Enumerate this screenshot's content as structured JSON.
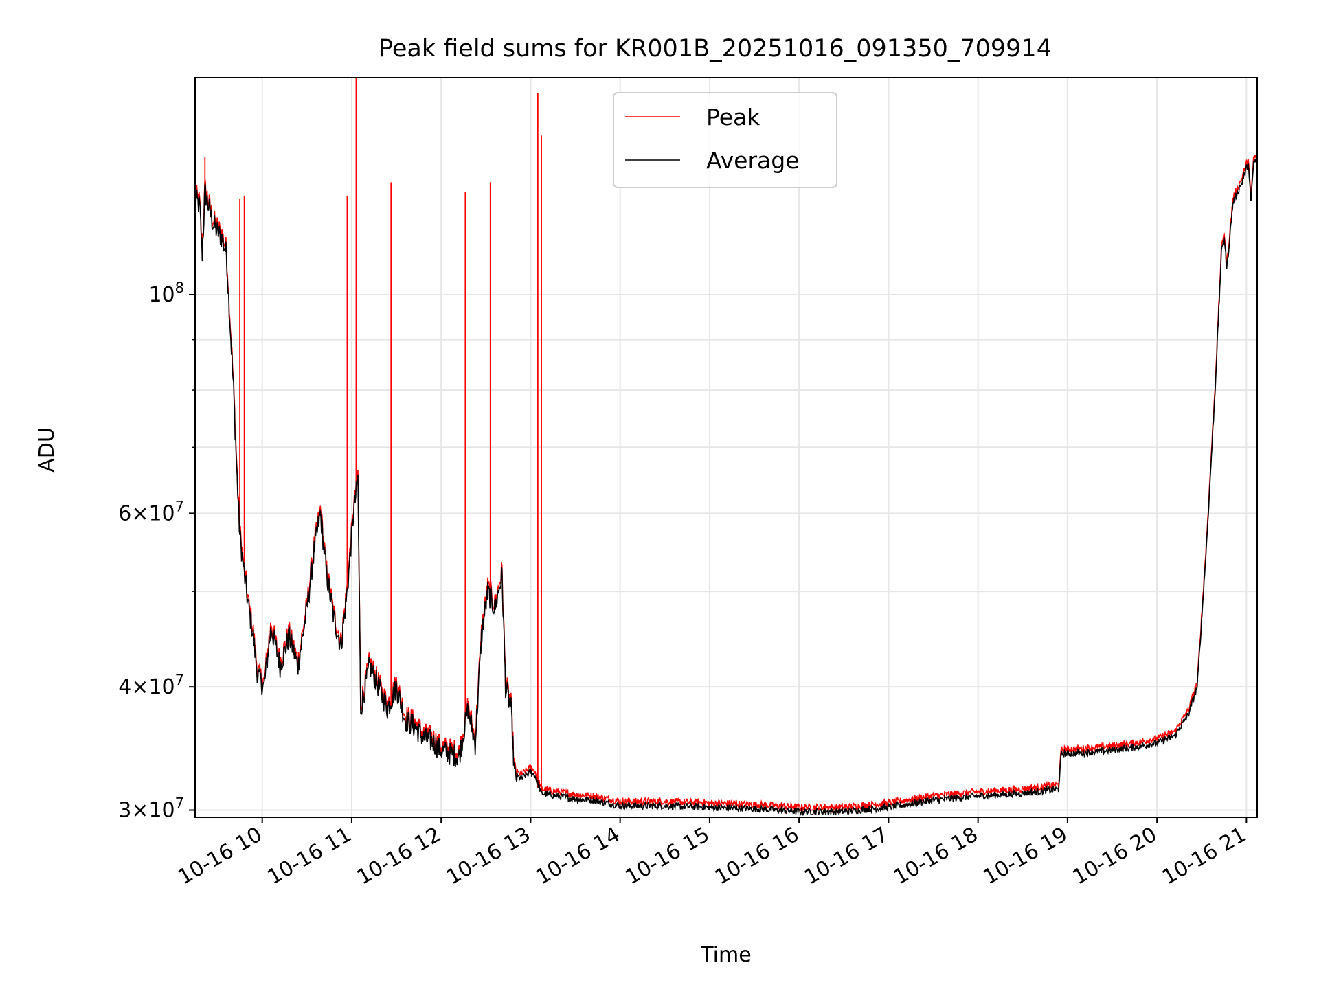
{
  "chart_data": {
    "type": "line",
    "title": "Peak field sums for KR001B_20251016_091350_709914",
    "xlabel": "Time",
    "ylabel": "ADU",
    "yscale": "log",
    "ylim": [
      29500000,
      166000000
    ],
    "xlim_hours": [
      9.25,
      21.12
    ],
    "grid": true,
    "legend_position": "upper-center",
    "x_ticks": [
      {
        "hour": 10,
        "label": "10-16 10"
      },
      {
        "hour": 11,
        "label": "10-16 11"
      },
      {
        "hour": 12,
        "label": "10-16 12"
      },
      {
        "hour": 13,
        "label": "10-16 13"
      },
      {
        "hour": 14,
        "label": "10-16 14"
      },
      {
        "hour": 15,
        "label": "10-16 15"
      },
      {
        "hour": 16,
        "label": "10-16 16"
      },
      {
        "hour": 17,
        "label": "10-16 17"
      },
      {
        "hour": 18,
        "label": "10-16 18"
      },
      {
        "hour": 19,
        "label": "10-16 19"
      },
      {
        "hour": 20,
        "label": "10-16 20"
      },
      {
        "hour": 21,
        "label": "10-16 21"
      }
    ],
    "y_ticks": [
      {
        "value": 30000000,
        "mantissa": "3",
        "exp": "7"
      },
      {
        "value": 40000000,
        "mantissa": "4",
        "exp": "7"
      },
      {
        "value": 60000000,
        "mantissa": "6",
        "exp": "7"
      },
      {
        "value": 100000000,
        "mantissa": "",
        "exp": "8"
      }
    ],
    "y_minor_ticks": [
      50000000,
      70000000,
      80000000,
      90000000
    ],
    "series": [
      {
        "name": "Average",
        "color": "#000000",
        "points": [
          [
            9.25,
            125000000
          ],
          [
            9.3,
            123000000
          ],
          [
            9.33,
            110000000
          ],
          [
            9.36,
            127000000
          ],
          [
            9.45,
            118000000
          ],
          [
            9.55,
            114000000
          ],
          [
            9.6,
            110000000
          ],
          [
            9.68,
            80000000
          ],
          [
            9.72,
            65000000
          ],
          [
            9.75,
            57000000
          ],
          [
            9.8,
            52000000
          ],
          [
            9.85,
            48000000
          ],
          [
            9.9,
            45000000
          ],
          [
            9.95,
            41000000
          ],
          [
            10.02,
            40000000
          ],
          [
            10.1,
            46000000
          ],
          [
            10.2,
            42000000
          ],
          [
            10.3,
            45000000
          ],
          [
            10.4,
            42000000
          ],
          [
            10.5,
            48000000
          ],
          [
            10.58,
            55000000
          ],
          [
            10.65,
            60000000
          ],
          [
            10.72,
            52000000
          ],
          [
            10.8,
            47000000
          ],
          [
            10.88,
            44000000
          ],
          [
            10.95,
            50000000
          ],
          [
            11.02,
            60000000
          ],
          [
            11.07,
            65000000
          ],
          [
            11.1,
            38000000
          ],
          [
            11.2,
            42000000
          ],
          [
            11.3,
            40000000
          ],
          [
            11.4,
            38000000
          ],
          [
            11.5,
            40000000
          ],
          [
            11.6,
            37000000
          ],
          [
            11.7,
            36500000
          ],
          [
            11.8,
            35500000
          ],
          [
            11.9,
            35200000
          ],
          [
            12.0,
            34500000
          ],
          [
            12.1,
            34200000
          ],
          [
            12.2,
            34000000
          ],
          [
            12.3,
            38000000
          ],
          [
            12.38,
            35000000
          ],
          [
            12.45,
            45000000
          ],
          [
            12.52,
            50000000
          ],
          [
            12.6,
            48000000
          ],
          [
            12.68,
            52000000
          ],
          [
            12.72,
            40000000
          ],
          [
            12.78,
            38000000
          ],
          [
            12.82,
            32500000
          ],
          [
            12.9,
            32300000
          ],
          [
            13.0,
            32800000
          ],
          [
            13.05,
            32500000
          ],
          [
            13.12,
            31200000
          ],
          [
            13.3,
            31000000
          ],
          [
            13.5,
            30800000
          ],
          [
            13.7,
            30700000
          ],
          [
            14.0,
            30300000
          ],
          [
            14.5,
            30300000
          ],
          [
            15.0,
            30200000
          ],
          [
            15.5,
            30100000
          ],
          [
            16.0,
            29900000
          ],
          [
            16.5,
            29900000
          ],
          [
            17.0,
            30200000
          ],
          [
            17.5,
            30700000
          ],
          [
            18.0,
            31000000
          ],
          [
            18.5,
            31200000
          ],
          [
            18.9,
            31500000
          ],
          [
            18.93,
            34200000
          ],
          [
            19.2,
            34300000
          ],
          [
            19.5,
            34500000
          ],
          [
            19.8,
            34800000
          ],
          [
            20.0,
            35100000
          ],
          [
            20.2,
            35700000
          ],
          [
            20.35,
            37500000
          ],
          [
            20.45,
            40000000
          ],
          [
            20.55,
            55000000
          ],
          [
            20.65,
            80000000
          ],
          [
            20.72,
            110000000
          ],
          [
            20.75,
            115000000
          ],
          [
            20.78,
            106000000
          ],
          [
            20.85,
            124000000
          ],
          [
            20.95,
            130000000
          ],
          [
            21.02,
            136000000
          ],
          [
            21.05,
            124000000
          ],
          [
            21.08,
            136000000
          ],
          [
            21.12,
            137000000
          ]
        ]
      },
      {
        "name": "Peak",
        "color": "#ff0000",
        "spikes": [
          [
            9.36,
            138000000
          ],
          [
            9.75,
            125000000
          ],
          [
            9.8,
            126000000
          ],
          [
            10.95,
            126000000
          ],
          [
            11.05,
            166000000
          ],
          [
            11.44,
            130000000
          ],
          [
            12.27,
            127000000
          ],
          [
            12.55,
            130000000
          ],
          [
            13.08,
            160000000
          ],
          [
            13.12,
            145000000
          ]
        ]
      }
    ]
  }
}
